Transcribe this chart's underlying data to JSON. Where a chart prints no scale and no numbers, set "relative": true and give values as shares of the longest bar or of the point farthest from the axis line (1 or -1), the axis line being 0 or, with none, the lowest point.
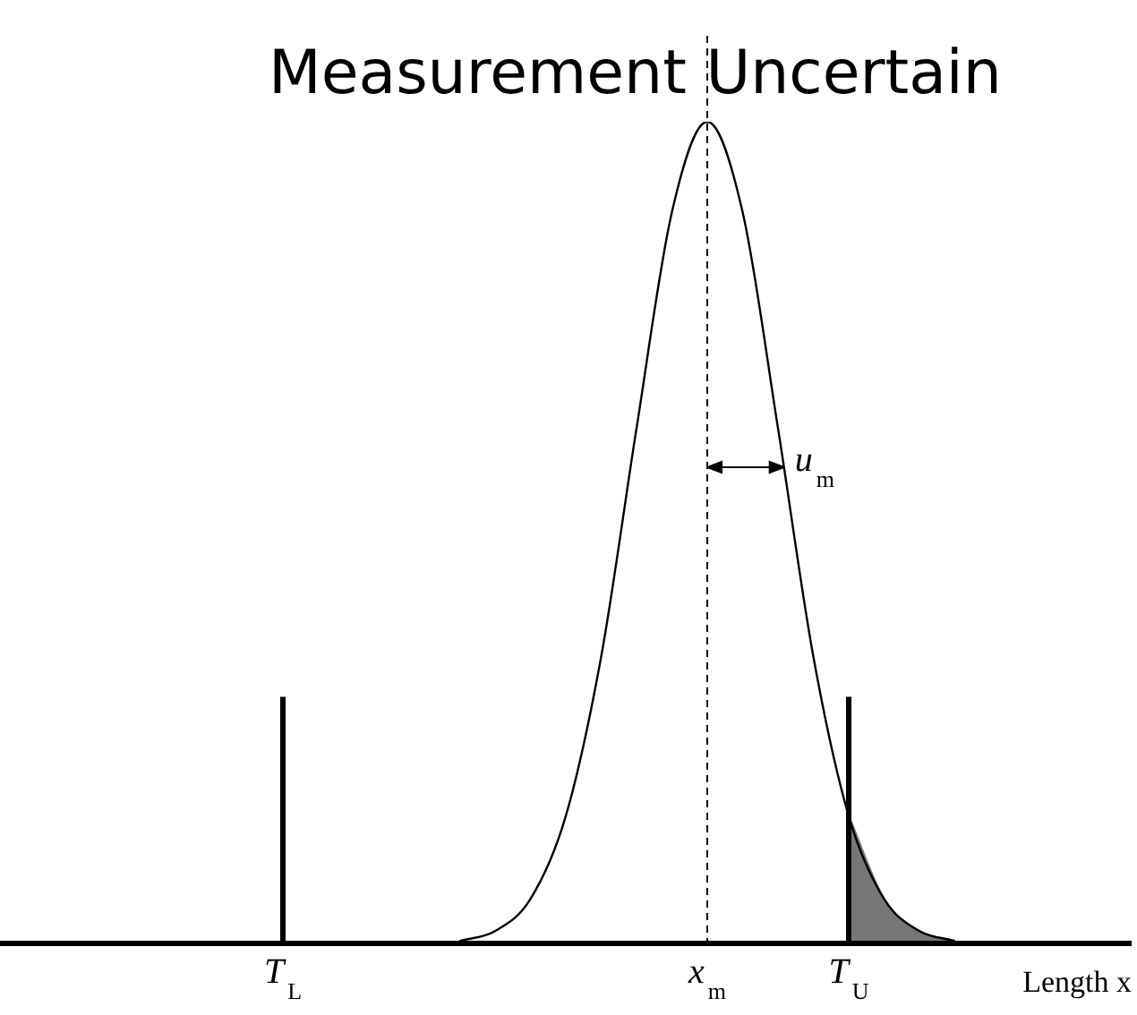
{
  "chart_data": {
    "type": "line",
    "title": "Measurement Uncertain",
    "xlabel": "Length x",
    "relative": true,
    "legend": false,
    "grid": false,
    "categories": [
      null,
      null,
      null,
      null,
      null,
      null,
      null,
      null,
      "T$_{L}$",
      null,
      null,
      null,
      null,
      null,
      null,
      null,
      null,
      null,
      null,
      null,
      "x$_{m}$",
      null,
      null,
      null,
      "T$_{U}$",
      null,
      null,
      null,
      null,
      null,
      null,
      null,
      null
    ],
    "series": [
      {
        "color": "#000000",
        "values": [
          null,
          null,
          null,
          null,
          null,
          null,
          null,
          null,
          null,
          null,
          null,
          null,
          null,
          0.003,
          0.015,
          0.054,
          0.155,
          0.349,
          0.627,
          0.89,
          1,
          0.89,
          0.627,
          0.349,
          0.155,
          0.054,
          0.015,
          0.003,
          null,
          null,
          null,
          null,
          null
        ]
      },
      {
        "type": "area",
        "color": "#777777",
        "values": [
          null,
          null,
          null,
          null,
          null,
          null,
          null,
          null,
          null,
          null,
          null,
          null,
          null,
          null,
          null,
          null,
          null,
          null,
          null,
          null,
          null,
          null,
          null,
          null,
          0.155,
          0.054,
          0.015,
          0.003,
          null,
          null,
          null,
          null,
          null
        ]
      }
    ],
    "ref_lines": [
      {
        "axis": "x",
        "value": "T$_{L}$",
        "line_style": "solid"
      },
      {
        "axis": "x",
        "value": "x$_{m}$",
        "line_style": "dashed"
      },
      {
        "axis": "x",
        "value": "T$_{U}$",
        "line_style": "solid"
      }
    ],
    "annotations": [
      "u$_{m}$"
    ]
  }
}
